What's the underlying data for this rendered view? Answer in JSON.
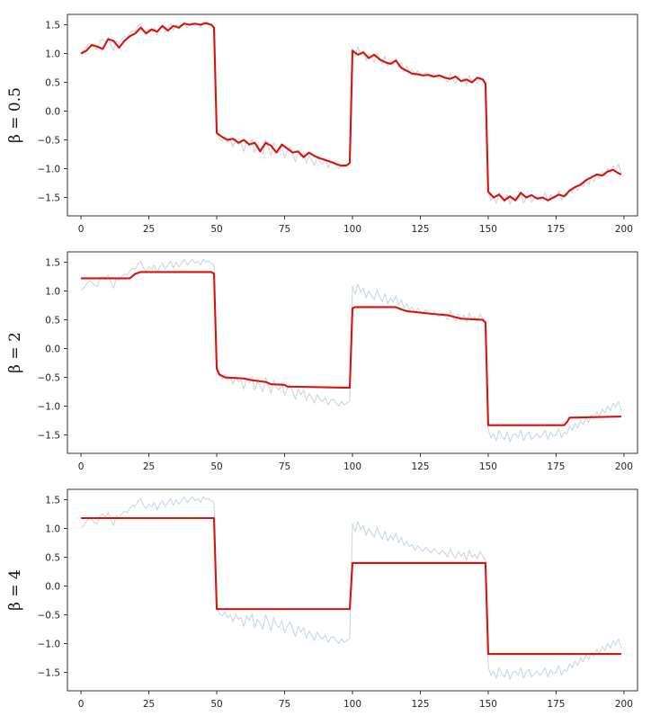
{
  "chart_data": [
    {
      "type": "line",
      "ylabel": "β = 0.5",
      "xlim": [
        -5,
        205
      ],
      "ylim": [
        -1.82,
        1.68
      ],
      "xticks": [
        "0",
        "25",
        "50",
        "75",
        "100",
        "125",
        "150",
        "175",
        "200"
      ],
      "yticks": [
        "1.5",
        "1.0",
        "0.5",
        "0.0",
        "−0.5",
        "−1.0",
        "−1.5"
      ],
      "grid": false,
      "series": [
        {
          "role": "observed",
          "color": "#c6d7e7",
          "values": "observed_signal"
        },
        {
          "role": "smoothed",
          "color": "#d9120a",
          "points": [
            [
              0,
              1.0
            ],
            [
              2,
              1.05
            ],
            [
              4,
              1.15
            ],
            [
              6,
              1.12
            ],
            [
              8,
              1.08
            ],
            [
              10,
              1.25
            ],
            [
              12,
              1.22
            ],
            [
              14,
              1.1
            ],
            [
              16,
              1.22
            ],
            [
              18,
              1.3
            ],
            [
              20,
              1.35
            ],
            [
              22,
              1.45
            ],
            [
              24,
              1.35
            ],
            [
              26,
              1.42
            ],
            [
              28,
              1.38
            ],
            [
              30,
              1.48
            ],
            [
              32,
              1.4
            ],
            [
              34,
              1.48
            ],
            [
              36,
              1.45
            ],
            [
              38,
              1.52
            ],
            [
              40,
              1.5
            ],
            [
              42,
              1.52
            ],
            [
              44,
              1.5
            ],
            [
              46,
              1.53
            ],
            [
              48,
              1.5
            ],
            [
              49,
              1.45
            ],
            [
              50,
              -0.38
            ],
            [
              52,
              -0.45
            ],
            [
              54,
              -0.5
            ],
            [
              56,
              -0.48
            ],
            [
              58,
              -0.55
            ],
            [
              60,
              -0.5
            ],
            [
              62,
              -0.58
            ],
            [
              64,
              -0.55
            ],
            [
              66,
              -0.7
            ],
            [
              68,
              -0.55
            ],
            [
              70,
              -0.6
            ],
            [
              72,
              -0.72
            ],
            [
              74,
              -0.58
            ],
            [
              76,
              -0.65
            ],
            [
              78,
              -0.72
            ],
            [
              80,
              -0.7
            ],
            [
              82,
              -0.8
            ],
            [
              84,
              -0.72
            ],
            [
              86,
              -0.78
            ],
            [
              88,
              -0.82
            ],
            [
              90,
              -0.85
            ],
            [
              92,
              -0.88
            ],
            [
              94,
              -0.92
            ],
            [
              96,
              -0.95
            ],
            [
              98,
              -0.94
            ],
            [
              99,
              -0.9
            ],
            [
              100,
              1.05
            ],
            [
              102,
              0.98
            ],
            [
              104,
              1.02
            ],
            [
              106,
              0.92
            ],
            [
              108,
              0.98
            ],
            [
              110,
              0.9
            ],
            [
              112,
              0.85
            ],
            [
              114,
              0.82
            ],
            [
              116,
              0.88
            ],
            [
              118,
              0.75
            ],
            [
              120,
              0.7
            ],
            [
              122,
              0.65
            ],
            [
              124,
              0.64
            ],
            [
              126,
              0.62
            ],
            [
              128,
              0.63
            ],
            [
              130,
              0.6
            ],
            [
              132,
              0.62
            ],
            [
              134,
              0.58
            ],
            [
              136,
              0.56
            ],
            [
              138,
              0.6
            ],
            [
              140,
              0.52
            ],
            [
              142,
              0.55
            ],
            [
              144,
              0.5
            ],
            [
              146,
              0.58
            ],
            [
              148,
              0.55
            ],
            [
              149,
              0.48
            ],
            [
              150,
              -1.4
            ],
            [
              152,
              -1.5
            ],
            [
              154,
              -1.45
            ],
            [
              156,
              -1.55
            ],
            [
              158,
              -1.48
            ],
            [
              160,
              -1.55
            ],
            [
              162,
              -1.42
            ],
            [
              164,
              -1.5
            ],
            [
              166,
              -1.46
            ],
            [
              168,
              -1.52
            ],
            [
              170,
              -1.5
            ],
            [
              172,
              -1.55
            ],
            [
              174,
              -1.5
            ],
            [
              176,
              -1.45
            ],
            [
              178,
              -1.48
            ],
            [
              180,
              -1.38
            ],
            [
              182,
              -1.32
            ],
            [
              184,
              -1.28
            ],
            [
              186,
              -1.2
            ],
            [
              188,
              -1.15
            ],
            [
              190,
              -1.1
            ],
            [
              192,
              -1.12
            ],
            [
              194,
              -1.05
            ],
            [
              196,
              -1.02
            ],
            [
              198,
              -1.08
            ],
            [
              199,
              -1.1
            ]
          ]
        }
      ]
    },
    {
      "type": "line",
      "ylabel": "β = 2",
      "xlim": [
        -5,
        205
      ],
      "ylim": [
        -1.82,
        1.68
      ],
      "xticks": [
        "0",
        "25",
        "50",
        "75",
        "100",
        "125",
        "150",
        "175",
        "200"
      ],
      "yticks": [
        "1.5",
        "1.0",
        "0.5",
        "0.0",
        "−0.5",
        "−1.0",
        "−1.5"
      ],
      "grid": false,
      "series": [
        {
          "role": "observed",
          "color": "#c6d7e7",
          "values": "observed_signal"
        },
        {
          "role": "smoothed",
          "color": "#d9120a",
          "points": [
            [
              0,
              1.22
            ],
            [
              18,
              1.22
            ],
            [
              20,
              1.3
            ],
            [
              22,
              1.33
            ],
            [
              48,
              1.33
            ],
            [
              49,
              1.3
            ],
            [
              50,
              -0.35
            ],
            [
              51,
              -0.45
            ],
            [
              53,
              -0.5
            ],
            [
              60,
              -0.52
            ],
            [
              63,
              -0.55
            ],
            [
              68,
              -0.58
            ],
            [
              70,
              -0.62
            ],
            [
              75,
              -0.63
            ],
            [
              76,
              -0.66
            ],
            [
              99,
              -0.68
            ],
            [
              100,
              0.7
            ],
            [
              101,
              0.72
            ],
            [
              116,
              0.72
            ],
            [
              118,
              0.68
            ],
            [
              120,
              0.65
            ],
            [
              130,
              0.6
            ],
            [
              135,
              0.58
            ],
            [
              140,
              0.52
            ],
            [
              148,
              0.5
            ],
            [
              149,
              0.45
            ],
            [
              150,
              -1.33
            ],
            [
              178,
              -1.33
            ],
            [
              179,
              -1.28
            ],
            [
              180,
              -1.2
            ],
            [
              199,
              -1.18
            ]
          ]
        }
      ]
    },
    {
      "type": "line",
      "ylabel": "β = 4",
      "xlim": [
        -5,
        205
      ],
      "ylim": [
        -1.82,
        1.68
      ],
      "xticks": [
        "0",
        "25",
        "50",
        "75",
        "100",
        "125",
        "150",
        "175",
        "200"
      ],
      "yticks": [
        "1.5",
        "1.0",
        "0.5",
        "0.0",
        "−0.5",
        "−1.0",
        "−1.5"
      ],
      "grid": false,
      "series": [
        {
          "role": "observed",
          "color": "#c6d7e7",
          "values": "observed_signal"
        },
        {
          "role": "smoothed",
          "color": "#d9120a",
          "points": [
            [
              0,
              1.18
            ],
            [
              49,
              1.18
            ],
            [
              50,
              -0.4
            ],
            [
              99,
              -0.4
            ],
            [
              100,
              0.4
            ],
            [
              149,
              0.4
            ],
            [
              150,
              -1.18
            ],
            [
              199,
              -1.18
            ]
          ]
        }
      ]
    }
  ],
  "observed_signal": [
    1.02,
    1.05,
    1.12,
    1.18,
    1.15,
    1.1,
    1.08,
    1.22,
    1.25,
    1.2,
    1.28,
    1.15,
    1.05,
    1.22,
    1.18,
    1.25,
    1.3,
    1.28,
    1.35,
    1.4,
    1.38,
    1.48,
    1.52,
    1.4,
    1.35,
    1.42,
    1.38,
    1.45,
    1.32,
    1.42,
    1.48,
    1.38,
    1.45,
    1.52,
    1.4,
    1.5,
    1.42,
    1.48,
    1.55,
    1.45,
    1.5,
    1.55,
    1.48,
    1.52,
    1.45,
    1.55,
    1.5,
    1.52,
    1.48,
    1.45,
    -0.38,
    -0.48,
    -0.52,
    -0.45,
    -0.55,
    -0.5,
    -0.62,
    -0.48,
    -0.58,
    -0.55,
    -0.7,
    -0.52,
    -0.6,
    -0.48,
    -0.72,
    -0.58,
    -0.65,
    -0.75,
    -0.5,
    -0.62,
    -0.78,
    -0.55,
    -0.68,
    -0.72,
    -0.6,
    -0.82,
    -0.7,
    -0.62,
    -0.75,
    -0.88,
    -0.7,
    -0.8,
    -0.72,
    -0.9,
    -0.78,
    -0.85,
    -0.95,
    -0.8,
    -0.88,
    -0.92,
    -0.85,
    -0.98,
    -0.9,
    -0.88,
    -0.95,
    -1.0,
    -0.92,
    -0.98,
    -0.95,
    -0.9,
    1.08,
    0.95,
    1.12,
    0.98,
    1.05,
    0.88,
    1.0,
    0.92,
    0.85,
    1.02,
    0.9,
    0.82,
    0.95,
    0.78,
    0.88,
    0.8,
    0.92,
    0.75,
    0.85,
    0.7,
    0.78,
    0.68,
    0.72,
    0.62,
    0.7,
    0.65,
    0.6,
    0.68,
    0.62,
    0.58,
    0.65,
    0.6,
    0.55,
    0.62,
    0.58,
    0.5,
    0.65,
    0.55,
    0.48,
    0.6,
    0.52,
    0.58,
    0.45,
    0.62,
    0.5,
    0.55,
    0.48,
    0.6,
    0.52,
    0.45,
    -1.4,
    -1.55,
    -1.48,
    -1.6,
    -1.42,
    -1.52,
    -1.58,
    -1.45,
    -1.62,
    -1.5,
    -1.48,
    -1.55,
    -1.42,
    -1.6,
    -1.5,
    -1.45,
    -1.58,
    -1.52,
    -1.48,
    -1.55,
    -1.5,
    -1.42,
    -1.58,
    -1.45,
    -1.52,
    -1.5,
    -1.38,
    -1.55,
    -1.45,
    -1.48,
    -1.35,
    -1.42,
    -1.3,
    -1.38,
    -1.25,
    -1.32,
    -1.2,
    -1.28,
    -1.15,
    -1.22,
    -1.1,
    -1.18,
    -1.05,
    -1.12,
    -1.0,
    -1.08,
    -0.95,
    -1.02,
    -0.92,
    -1.08
  ]
}
